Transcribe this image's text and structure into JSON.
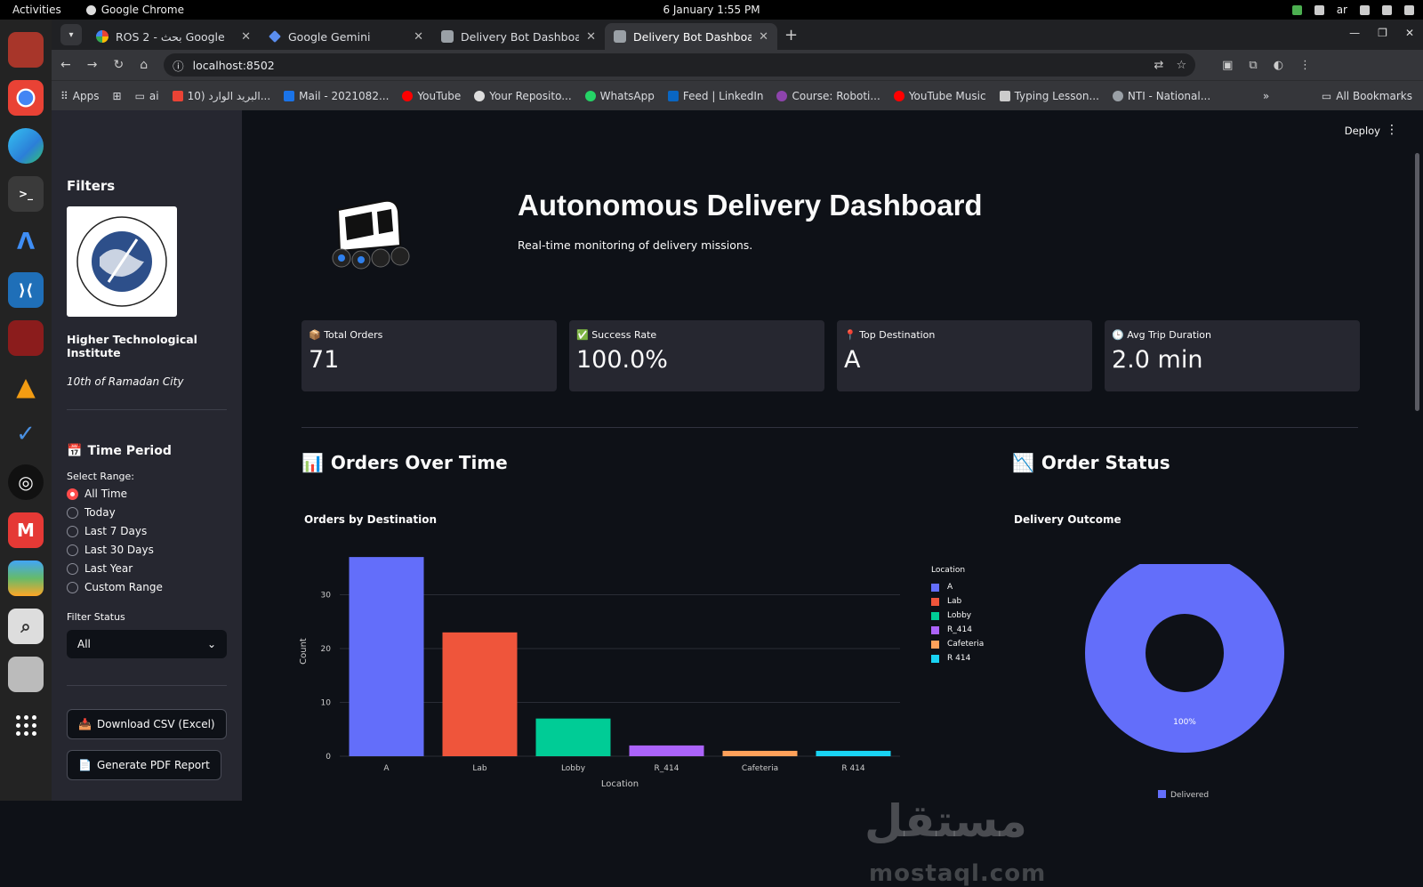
{
  "system": {
    "activities": "Activities",
    "app_name": "Google Chrome",
    "clock": "6 January  1:55 PM",
    "lang": "ar"
  },
  "browser": {
    "tabs": [
      {
        "title": "ROS 2 - بحث Google",
        "active": false
      },
      {
        "title": "Google Gemini",
        "active": false
      },
      {
        "title": "Delivery Bot Dashboard",
        "active": false
      },
      {
        "title": "Delivery Bot Dashboard",
        "active": true
      }
    ],
    "url": "localhost:8502",
    "bookmarks": [
      "Apps",
      "ai",
      "البريد الوارد (10...",
      "Mail - 2021082...",
      "YouTube",
      "Your Reposito...",
      "WhatsApp",
      "Feed | LinkedIn",
      "Course: Roboti...",
      "YouTube Music",
      "Typing Lesson...",
      "NTI - National..."
    ],
    "all_bookmarks": "All Bookmarks"
  },
  "sidebar": {
    "title": "Filters",
    "institute": "Higher Technological Institute",
    "city": "10th of Ramadan City",
    "time_period": "Time Period",
    "select_range_label": "Select Range:",
    "ranges": [
      "All Time",
      "Today",
      "Last 7 Days",
      "Last 30 Days",
      "Last Year",
      "Custom Range"
    ],
    "selected_range": "All Time",
    "filter_status_label": "Filter Status",
    "filter_status_value": "All",
    "download_csv": "Download CSV (Excel)",
    "generate_pdf": "Generate PDF Report"
  },
  "main": {
    "deploy": "Deploy",
    "title": "Autonomous Delivery Dashboard",
    "subtitle": "Real-time monitoring of delivery missions.",
    "metrics": [
      {
        "label": "Total Orders",
        "value": "71"
      },
      {
        "label": "Success Rate",
        "value": "100.0%"
      },
      {
        "label": "Top Destination",
        "value": "A"
      },
      {
        "label": "Avg Trip Duration",
        "value": "2.0 min"
      }
    ],
    "orders_over_time": "Orders Over Time",
    "order_status": "Order Status",
    "watermark": "مستقل",
    "watermark_url": "mostaql.com"
  },
  "chart_data": [
    {
      "type": "bar",
      "title": "Orders by Destination",
      "ylabel": "Count",
      "xlabel": "Location",
      "categories": [
        "A",
        "Lab",
        "Lobby",
        "R_414",
        "Cafeteria",
        "R 414"
      ],
      "values": [
        37,
        23,
        7,
        2,
        1,
        1
      ],
      "colors": [
        "#636efa",
        "#ef553b",
        "#00cc96",
        "#ab63fa",
        "#ffa15a",
        "#19d3f3"
      ],
      "yticks": [
        0,
        10,
        20,
        30
      ],
      "ylim": [
        0,
        39
      ],
      "legend_title": "Location",
      "legend": "right"
    },
    {
      "type": "pie",
      "title": "Delivery Outcome",
      "labels": [
        "Delivered"
      ],
      "values": [
        100
      ],
      "slice_labels": [
        "100%"
      ],
      "colors": [
        "#636efa"
      ],
      "hole": true
    }
  ]
}
